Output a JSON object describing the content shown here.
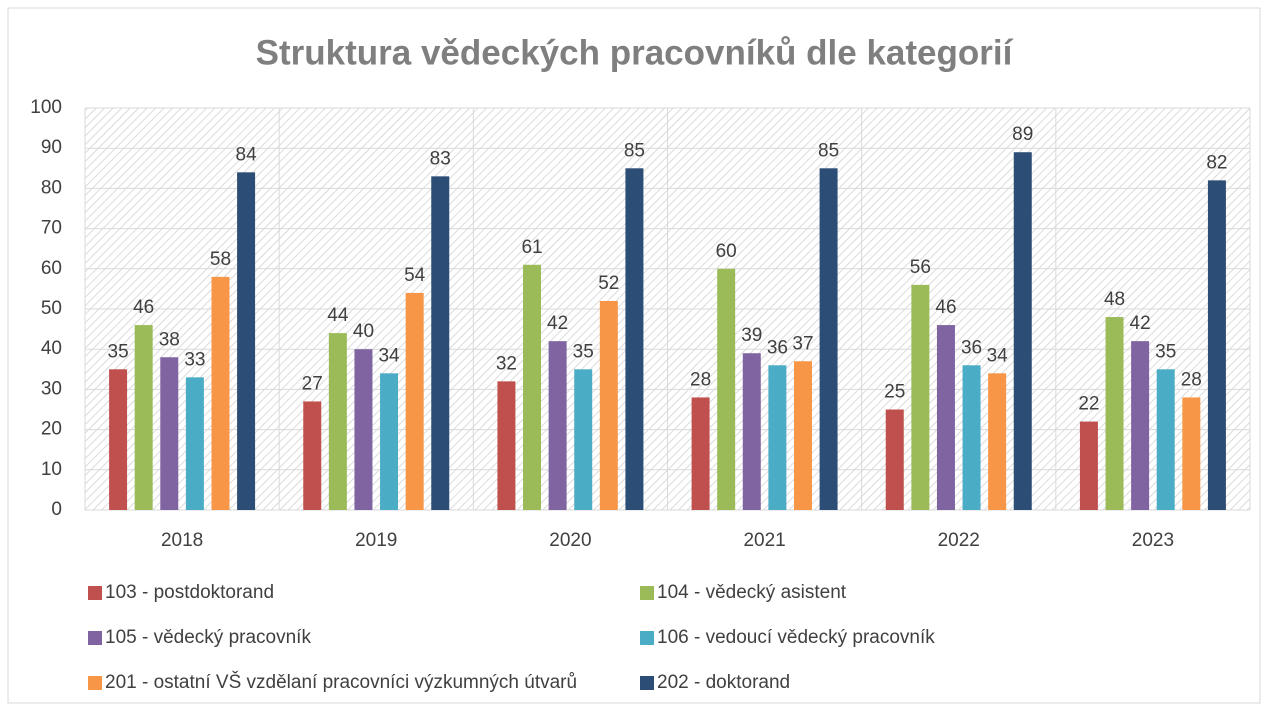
{
  "chart_data": {
    "type": "bar",
    "title": "Struktura vědeckých pracovníků dle kategorií",
    "categories": [
      "2018",
      "2019",
      "2020",
      "2021",
      "2022",
      "2023"
    ],
    "series": [
      {
        "name": "103 - postdoktorand",
        "color": "#c0504d",
        "values": [
          35,
          27,
          32,
          28,
          25,
          22
        ]
      },
      {
        "name": "104 - vědecký asistent",
        "color": "#9bbb59",
        "values": [
          46,
          44,
          61,
          60,
          56,
          48
        ]
      },
      {
        "name": "105 - vědecký pracovník",
        "color": "#8064a2",
        "values": [
          38,
          40,
          42,
          39,
          46,
          42
        ]
      },
      {
        "name": "106 - vedoucí vědecký pracovník",
        "color": "#4bacc6",
        "values": [
          33,
          34,
          35,
          36,
          36,
          35
        ]
      },
      {
        "name": "201 - ostatní VŠ vzdělaní pracovníci výzkumných útvarů",
        "color": "#f79646",
        "values": [
          58,
          54,
          52,
          37,
          34,
          28
        ]
      },
      {
        "name": "202 - doktorand",
        "color": "#2c4d75",
        "values": [
          84,
          83,
          85,
          85,
          89,
          82
        ]
      }
    ],
    "ylim": [
      0,
      100
    ],
    "yticks": [
      0,
      10,
      20,
      30,
      40,
      50,
      60,
      70,
      80,
      90,
      100
    ],
    "grid": true,
    "legend": "bottom"
  }
}
